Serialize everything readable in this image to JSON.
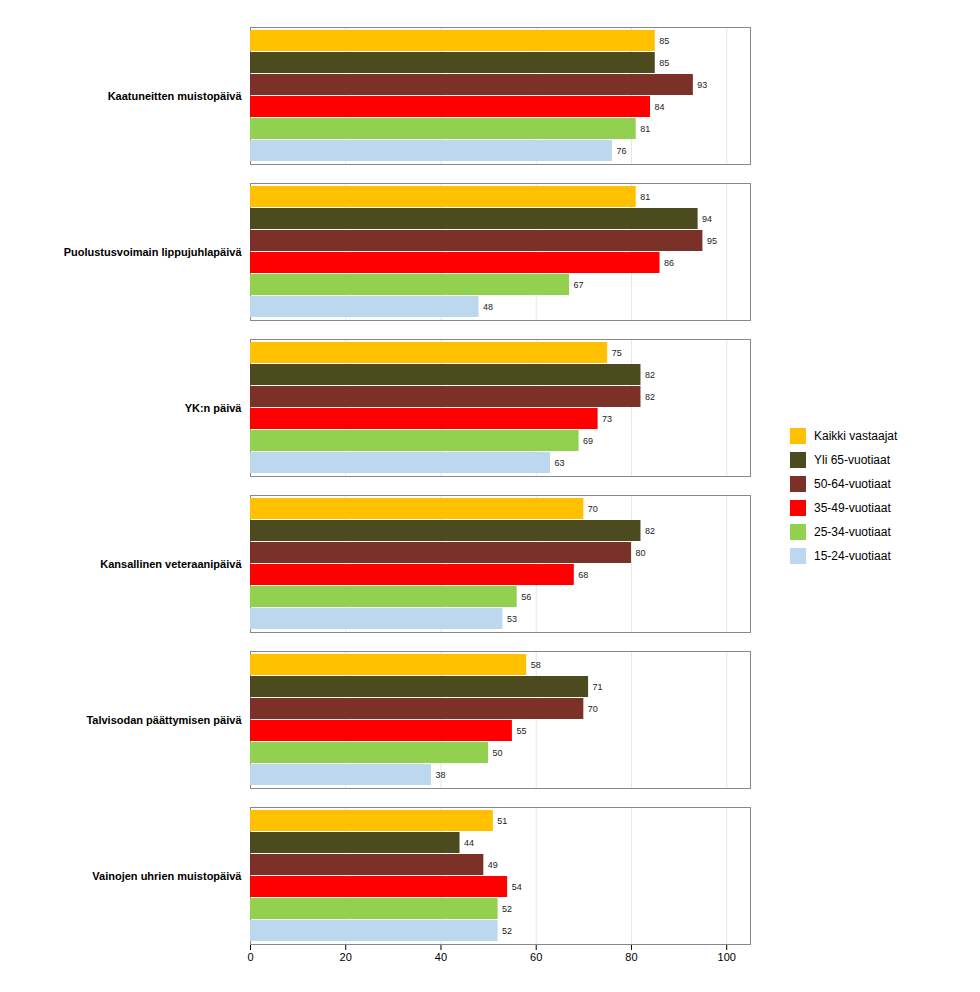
{
  "chart_data": {
    "type": "bar",
    "orientation": "horizontal",
    "categories": [
      "Kaatuneitten muistopäivä",
      "Puolustusvoimain lippujuhlapäivä",
      "YK:n päivä",
      "Kansallinen veteraanipäivä",
      "Talvisodan päättymisen päivä",
      "Vainojen uhrien muistopäivä"
    ],
    "series": [
      {
        "name": "Kaikki vastaajat",
        "color": "#FFC000",
        "values": [
          85,
          81,
          75,
          70,
          58,
          51
        ]
      },
      {
        "name": "Yli 65-vuotiaat",
        "color": "#4B4B1F",
        "values": [
          85,
          94,
          82,
          82,
          71,
          44
        ]
      },
      {
        "name": "50-64-vuotiaat",
        "color": "#7B3028",
        "values": [
          93,
          95,
          82,
          80,
          70,
          49
        ]
      },
      {
        "name": "35-49-vuotiaat",
        "color": "#FF0000",
        "values": [
          84,
          86,
          73,
          68,
          55,
          54
        ]
      },
      {
        "name": "25-34-vuotiaat",
        "color": "#92D050",
        "values": [
          81,
          67,
          69,
          56,
          50,
          52
        ]
      },
      {
        "name": "15-24-vuotiaat",
        "color": "#BDD7EE",
        "values": [
          76,
          48,
          63,
          53,
          38,
          52
        ]
      }
    ],
    "xlim": [
      0,
      105
    ],
    "xticks": [
      0,
      20,
      40,
      60,
      80,
      100
    ],
    "grid": true,
    "data_labels": true,
    "legend": "right"
  }
}
